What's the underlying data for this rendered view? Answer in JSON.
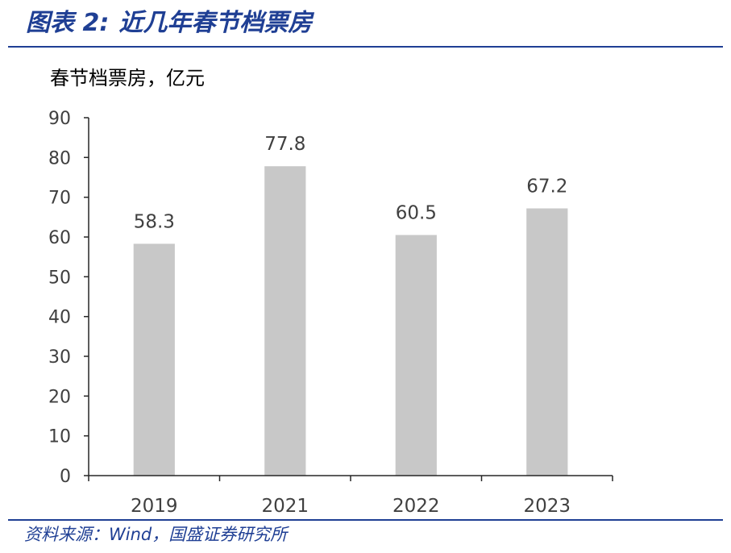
{
  "header": {
    "figure_label": "图表 2:",
    "accent_color": "#1f3f94"
  },
  "chart_data": {
    "type": "bar",
    "title": "近几年春节档票房",
    "ylabel": "春节档票房，亿元",
    "categories": [
      "2019",
      "2021",
      "2022",
      "2023"
    ],
    "values": [
      58.3,
      77.8,
      60.5,
      67.2
    ],
    "ylim": [
      0,
      90
    ],
    "yticks": [
      0,
      10,
      20,
      30,
      40,
      50,
      60,
      70,
      80,
      90
    ],
    "data_labels": true,
    "grid": false,
    "bar_color": "#c8c8c8"
  },
  "footer": {
    "source": "资料来源：Wind，国盛证券研究所"
  }
}
